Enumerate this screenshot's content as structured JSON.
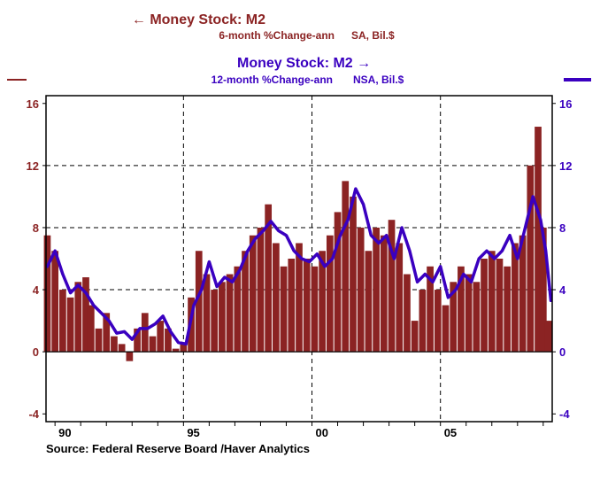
{
  "chart_data": {
    "type": "bar",
    "x_range": [
      1989.65,
      2009.35
    ],
    "ylim": [
      -4.5,
      16.5
    ],
    "x_tick_labels": [
      {
        "label": "90",
        "year": 1990
      },
      {
        "label": "95",
        "year": 1995
      },
      {
        "label": "00",
        "year": 2000
      },
      {
        "label": "05",
        "year": 2005
      }
    ],
    "y_ticks_left": [
      "16",
      "12",
      "8",
      "4",
      "0",
      "-4"
    ],
    "y_ticks_right": [
      "16",
      "12",
      "8",
      "4",
      "0",
      "-4"
    ],
    "y_tick_values": [
      16,
      12,
      8,
      4,
      0,
      -4
    ],
    "gridlines_y": [
      4,
      8,
      12
    ],
    "gridlines_x": [
      1995,
      2000,
      2005
    ],
    "legend_left": {
      "arrow": "←",
      "title": "Money Stock: M2",
      "subtitle": "6-month %Change-ann",
      "units": "SA, Bil.$",
      "color": "#8b2323"
    },
    "legend_right": {
      "title": "Money Stock: M2",
      "arrow": "→",
      "subtitle": "12-month %Change-ann",
      "units": "NSA, Bil.$",
      "color": "#3a00c0"
    },
    "series": [
      {
        "name": "Money Stock: M2 6-month %Change-ann (SA, Bil.$)",
        "type": "bar",
        "axis": "left",
        "points": [
          [
            1989.7,
            7.5
          ],
          [
            1990.0,
            6.5
          ],
          [
            1990.3,
            4.0
          ],
          [
            1990.6,
            3.5
          ],
          [
            1990.9,
            4.5
          ],
          [
            1991.2,
            4.8
          ],
          [
            1991.4,
            3.0
          ],
          [
            1991.7,
            1.5
          ],
          [
            1992.0,
            2.5
          ],
          [
            1992.3,
            1.0
          ],
          [
            1992.6,
            0.5
          ],
          [
            1992.9,
            -0.6
          ],
          [
            1993.2,
            1.5
          ],
          [
            1993.5,
            2.5
          ],
          [
            1993.8,
            1.0
          ],
          [
            1994.1,
            2.0
          ],
          [
            1994.4,
            1.5
          ],
          [
            1994.7,
            0.2
          ],
          [
            1995.0,
            0.5
          ],
          [
            1995.3,
            3.5
          ],
          [
            1995.6,
            6.5
          ],
          [
            1995.9,
            5.0
          ],
          [
            1996.2,
            4.0
          ],
          [
            1996.5,
            4.5
          ],
          [
            1996.8,
            5.0
          ],
          [
            1997.1,
            5.5
          ],
          [
            1997.4,
            6.5
          ],
          [
            1997.7,
            7.5
          ],
          [
            1998.0,
            8.0
          ],
          [
            1998.3,
            9.5
          ],
          [
            1998.6,
            7.0
          ],
          [
            1998.9,
            5.5
          ],
          [
            1999.2,
            6.0
          ],
          [
            1999.5,
            7.0
          ],
          [
            1999.8,
            6.0
          ],
          [
            2000.1,
            5.5
          ],
          [
            2000.4,
            6.5
          ],
          [
            2000.7,
            7.5
          ],
          [
            2001.0,
            9.0
          ],
          [
            2001.3,
            11.0
          ],
          [
            2001.6,
            10.0
          ],
          [
            2001.9,
            8.0
          ],
          [
            2002.2,
            6.5
          ],
          [
            2002.5,
            8.0
          ],
          [
            2002.8,
            7.5
          ],
          [
            2003.1,
            8.5
          ],
          [
            2003.4,
            7.0
          ],
          [
            2003.7,
            5.0
          ],
          [
            2004.0,
            2.0
          ],
          [
            2004.3,
            4.0
          ],
          [
            2004.6,
            5.5
          ],
          [
            2004.9,
            4.0
          ],
          [
            2005.2,
            3.0
          ],
          [
            2005.5,
            4.5
          ],
          [
            2005.8,
            5.5
          ],
          [
            2006.1,
            5.0
          ],
          [
            2006.4,
            4.5
          ],
          [
            2006.7,
            6.0
          ],
          [
            2007.0,
            6.5
          ],
          [
            2007.3,
            6.0
          ],
          [
            2007.6,
            5.5
          ],
          [
            2007.9,
            7.0
          ],
          [
            2008.2,
            7.5
          ],
          [
            2008.5,
            12.0
          ],
          [
            2008.8,
            14.5
          ],
          [
            2009.0,
            8.0
          ],
          [
            2009.2,
            2.0
          ]
        ]
      },
      {
        "name": "Money Stock: M2 12-month %Change-ann (NSA, Bil.$)",
        "type": "line",
        "axis": "right",
        "points": [
          [
            1989.7,
            5.5
          ],
          [
            1990.0,
            6.5
          ],
          [
            1990.3,
            5.0
          ],
          [
            1990.6,
            3.8
          ],
          [
            1990.9,
            4.3
          ],
          [
            1991.2,
            3.8
          ],
          [
            1991.5,
            3.0
          ],
          [
            1991.8,
            2.5
          ],
          [
            1992.1,
            2.0
          ],
          [
            1992.4,
            1.2
          ],
          [
            1992.7,
            1.3
          ],
          [
            1993.0,
            0.8
          ],
          [
            1993.3,
            1.5
          ],
          [
            1993.6,
            1.5
          ],
          [
            1993.9,
            1.8
          ],
          [
            1994.2,
            2.3
          ],
          [
            1994.5,
            1.3
          ],
          [
            1994.8,
            0.6
          ],
          [
            1995.1,
            0.5
          ],
          [
            1995.4,
            3.0
          ],
          [
            1995.7,
            4.0
          ],
          [
            1996.0,
            5.8
          ],
          [
            1996.3,
            4.2
          ],
          [
            1996.6,
            4.8
          ],
          [
            1996.9,
            4.5
          ],
          [
            1997.2,
            5.3
          ],
          [
            1997.5,
            6.5
          ],
          [
            1997.8,
            7.3
          ],
          [
            1998.1,
            7.8
          ],
          [
            1998.4,
            8.4
          ],
          [
            1998.7,
            7.8
          ],
          [
            1999.0,
            7.5
          ],
          [
            1999.3,
            6.5
          ],
          [
            1999.6,
            6.0
          ],
          [
            1999.9,
            5.8
          ],
          [
            2000.2,
            6.3
          ],
          [
            2000.5,
            5.5
          ],
          [
            2000.8,
            6.0
          ],
          [
            2001.1,
            7.5
          ],
          [
            2001.4,
            8.5
          ],
          [
            2001.7,
            10.5
          ],
          [
            2002.0,
            9.5
          ],
          [
            2002.3,
            7.5
          ],
          [
            2002.6,
            7.0
          ],
          [
            2002.9,
            7.5
          ],
          [
            2003.2,
            6.0
          ],
          [
            2003.5,
            8.0
          ],
          [
            2003.8,
            6.5
          ],
          [
            2004.1,
            4.5
          ],
          [
            2004.4,
            5.0
          ],
          [
            2004.7,
            4.5
          ],
          [
            2005.0,
            5.5
          ],
          [
            2005.3,
            3.5
          ],
          [
            2005.6,
            4.0
          ],
          [
            2005.9,
            5.0
          ],
          [
            2006.2,
            4.5
          ],
          [
            2006.5,
            6.0
          ],
          [
            2006.8,
            6.5
          ],
          [
            2007.1,
            6.0
          ],
          [
            2007.4,
            6.5
          ],
          [
            2007.7,
            7.5
          ],
          [
            2008.0,
            6.0
          ],
          [
            2008.3,
            8.0
          ],
          [
            2008.6,
            10.0
          ],
          [
            2008.9,
            8.5
          ],
          [
            2009.1,
            6.5
          ],
          [
            2009.3,
            3.3
          ]
        ]
      }
    ],
    "source_text": "Source:  Federal Reserve Board /Haver Analytics"
  }
}
